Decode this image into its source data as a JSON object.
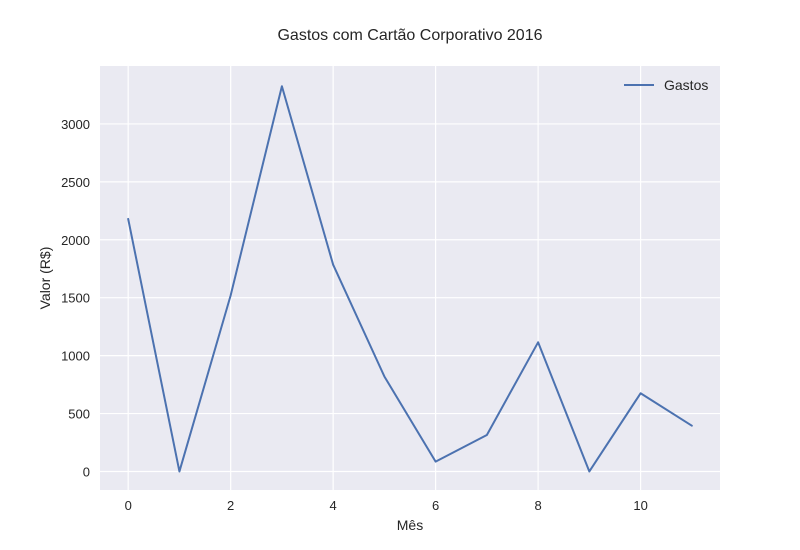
{
  "chart_data": {
    "type": "line",
    "title": "Gastos com Cartão Corporativo 2016",
    "xlabel": "Mês",
    "ylabel": "Valor (R$)",
    "x": [
      0,
      1,
      2,
      3,
      4,
      5,
      6,
      7,
      8,
      9,
      10,
      11
    ],
    "series": [
      {
        "name": "Gastos",
        "values": [
          2180,
          0,
          1520,
          3325,
          1785,
          820,
          85,
          315,
          1115,
          0,
          675,
          395
        ],
        "color": "#4c72b0"
      }
    ],
    "xlim": [
      -0.55,
      11.55
    ],
    "ylim": [
      -160,
      3500
    ],
    "xticks": [
      0,
      2,
      4,
      6,
      8,
      10
    ],
    "yticks": [
      0,
      500,
      1000,
      1500,
      2000,
      2500,
      3000
    ],
    "grid": true,
    "legend_position": "top-right",
    "background_color": "#eaeaf2",
    "grid_color": "#ffffff"
  }
}
